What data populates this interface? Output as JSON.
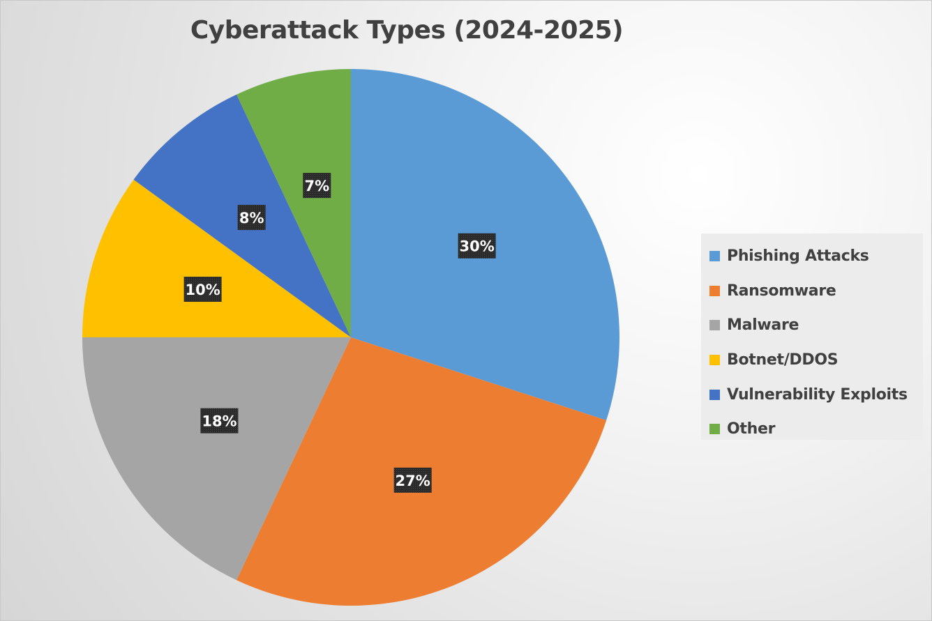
{
  "chart_data": {
    "type": "pie",
    "title": "Cyberattack Types (2024-2025)",
    "categories": [
      "Phishing Attacks",
      "Ransomware",
      "Malware",
      "Botnet/DDOS",
      "Vulnerability Exploits",
      "Other"
    ],
    "values": [
      30,
      27,
      18,
      10,
      8,
      7
    ],
    "data_labels": [
      "30%",
      "27%",
      "18%",
      "10%",
      "8%",
      "7%"
    ],
    "colors": [
      "#5b9bd5",
      "#ed7d31",
      "#a5a5a5",
      "#ffc000",
      "#4472c4",
      "#70ad47"
    ],
    "legend_position": "right",
    "start_angle": "12 o'clock",
    "direction": "clockwise"
  }
}
